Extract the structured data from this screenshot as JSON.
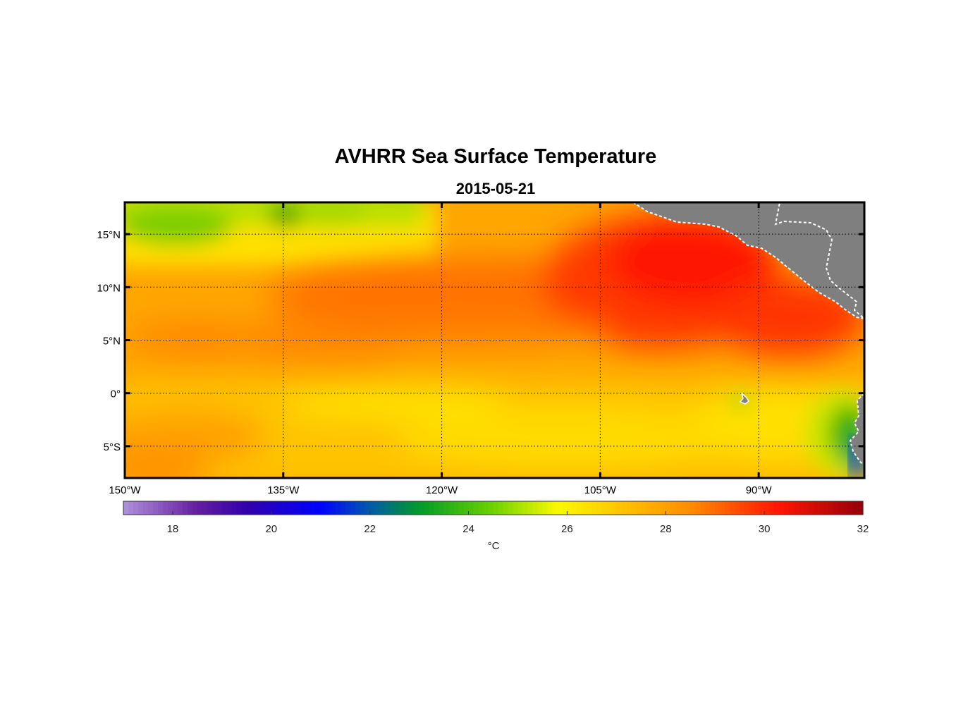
{
  "title": "AVHRR Sea Surface Temperature",
  "subtitle": "2015-05-21",
  "map": {
    "lon_range": [
      -150,
      -80
    ],
    "lat_range": [
      -8,
      18
    ],
    "lat_ticks": [
      {
        "value": 15,
        "label": "15°N"
      },
      {
        "value": 10,
        "label": "10°N"
      },
      {
        "value": 5,
        "label": "5°N"
      },
      {
        "value": 0,
        "label": "0°"
      },
      {
        "value": -5,
        "label": "5°S"
      }
    ],
    "lon_ticks": [
      {
        "value": -150,
        "label": "150°W"
      },
      {
        "value": -135,
        "label": "135°W"
      },
      {
        "value": -120,
        "label": "120°W"
      },
      {
        "value": -105,
        "label": "105°W"
      },
      {
        "value": -90,
        "label": "90°W"
      }
    ],
    "grid": "dotted",
    "land_color": "#7f7f7f"
  },
  "colorbar": {
    "min": 17,
    "max": 32,
    "ticks": [
      18,
      20,
      22,
      24,
      26,
      28,
      30,
      32
    ],
    "unit": "°C"
  }
}
